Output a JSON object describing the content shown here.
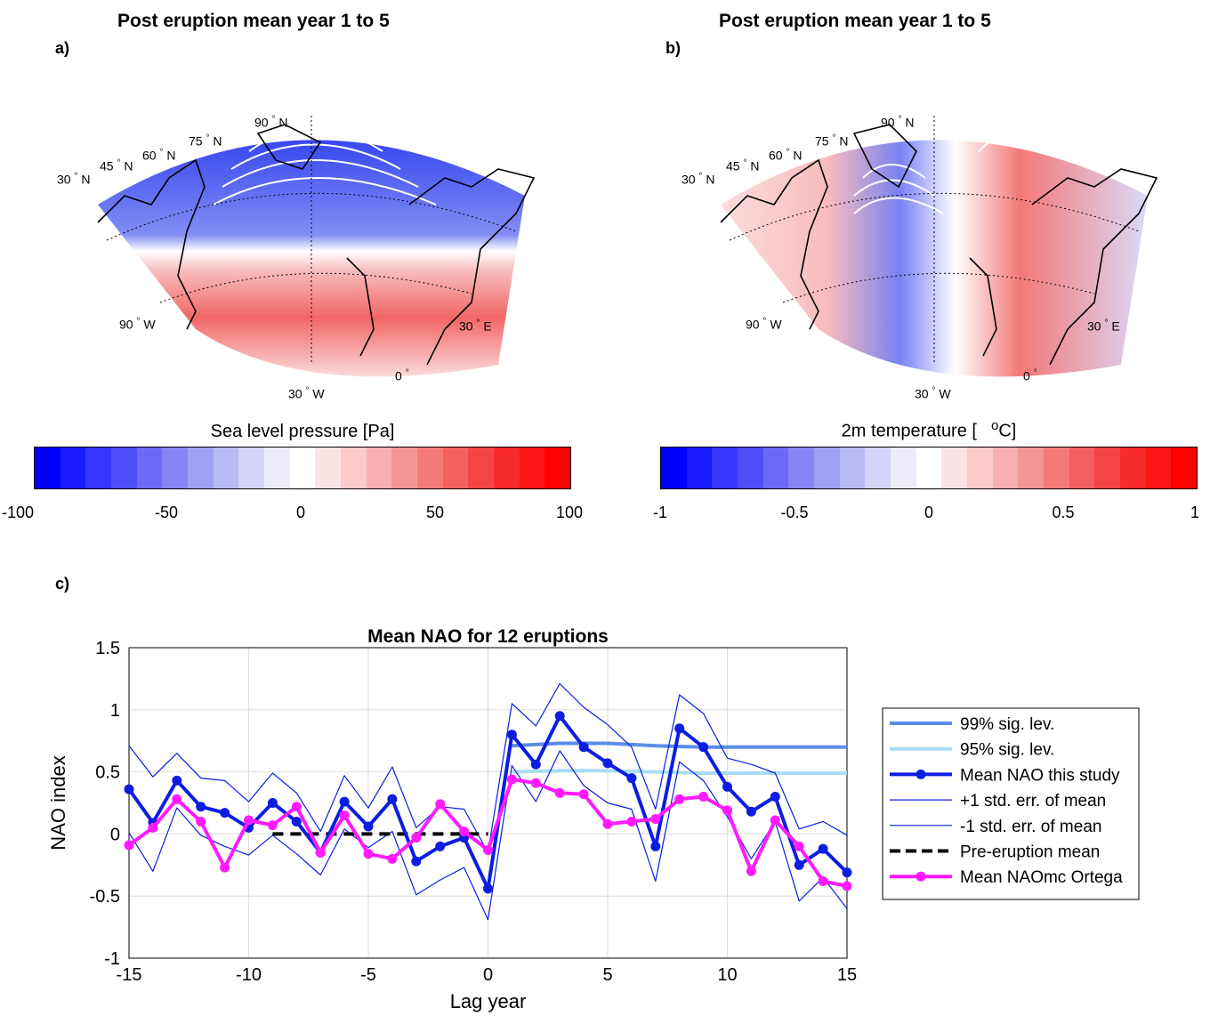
{
  "panel_a": {
    "label": "a)",
    "title": "Post eruption mean year 1 to 5",
    "colorbar_title": "Sea level pressure [Pa]",
    "colorbar_ticks": [
      "-100",
      "-50",
      "0",
      "50",
      "100"
    ],
    "geo_labels": {
      "n90": "90",
      "n75": "75",
      "n60": "60",
      "n45": "45",
      "n30": "30",
      "w90": "90",
      "w30": "30",
      "e0": "0",
      "e30": "30",
      "N": "N",
      "W": "W",
      "E": "E"
    }
  },
  "panel_b": {
    "label": "b)",
    "title": "Post eruption mean year 1 to 5",
    "colorbar_title_main": "2m temperature [",
    "colorbar_title_sup": "o",
    "colorbar_title_end": "C]",
    "colorbar_ticks": [
      "-1",
      "-0.5",
      "0",
      "0.5",
      "1"
    ],
    "geo_labels": {
      "n90": "90",
      "n75": "75",
      "n60": "60",
      "n45": "45",
      "n30": "30",
      "w90": "90",
      "w30": "30",
      "e0": "0",
      "e30": "30",
      "N": "N",
      "W": "W",
      "E": "E"
    }
  },
  "panel_c": {
    "label": "c)"
  },
  "colors": {
    "mean_nao": "#0b1ee0",
    "stderr": "#0b1ee0",
    "sig99": "#5b8ee8",
    "sig95": "#a9dcf2",
    "ortega": "#ff1aff",
    "pre_mean": "#000000",
    "grid": "#dddddd"
  },
  "chart_data": {
    "type": "line",
    "title": "Mean NAO for 12 eruptions",
    "xlabel": "Lag year",
    "ylabel": "NAO index",
    "xlim": [
      -15,
      15
    ],
    "ylim": [
      -1,
      1.5
    ],
    "xticks": [
      "-15",
      "-10",
      "-5",
      "0",
      "5",
      "10",
      "15"
    ],
    "yticks": [
      "-1",
      "-0.5",
      "0",
      "0.5",
      "1",
      "1.5"
    ],
    "grid": true,
    "legend_position": "right",
    "x": [
      -15,
      -14,
      -13,
      -12,
      -11,
      -10,
      -9,
      -8,
      -7,
      -6,
      -5,
      -4,
      -3,
      -2,
      -1,
      0,
      1,
      2,
      3,
      4,
      5,
      6,
      7,
      8,
      9,
      10,
      11,
      12,
      13,
      14,
      15
    ],
    "series": [
      {
        "name": "99% sig. lev.",
        "x": [
          1,
          3,
          5,
          7,
          9,
          11,
          13,
          15
        ],
        "values": [
          0.71,
          0.73,
          0.73,
          0.71,
          0.7,
          0.7,
          0.7,
          0.7
        ]
      },
      {
        "name": "95% sig. lev.",
        "x": [
          1,
          3,
          5,
          7,
          9,
          11,
          13,
          15
        ],
        "values": [
          0.5,
          0.51,
          0.51,
          0.5,
          0.49,
          0.49,
          0.49,
          0.49
        ]
      },
      {
        "name": "Mean NAO this study",
        "values": [
          0.36,
          0.09,
          0.43,
          0.22,
          0.17,
          0.05,
          0.25,
          0.1,
          -0.15,
          0.26,
          0.06,
          0.28,
          -0.22,
          -0.1,
          -0.03,
          -0.44,
          0.8,
          0.56,
          0.95,
          0.7,
          0.57,
          0.45,
          -0.1,
          0.85,
          0.7,
          0.38,
          0.18,
          0.3,
          -0.25,
          -0.12,
          -0.31
        ]
      },
      {
        "name": "+1 std. err. of mean",
        "values": [
          0.71,
          0.46,
          0.65,
          0.45,
          0.43,
          0.26,
          0.49,
          0.33,
          0.02,
          0.47,
          0.21,
          0.54,
          0.05,
          0.22,
          0.2,
          -0.15,
          1.05,
          0.87,
          1.21,
          1.02,
          0.88,
          0.7,
          0.2,
          1.12,
          0.97,
          0.61,
          0.56,
          0.49,
          0.04,
          0.1,
          -0.01
        ]
      },
      {
        "name": "-1 std. err. of mean",
        "values": [
          0.01,
          -0.3,
          0.21,
          -0.01,
          -0.1,
          -0.17,
          -0.01,
          -0.16,
          -0.33,
          0.04,
          -0.11,
          0.02,
          -0.49,
          -0.37,
          -0.27,
          -0.69,
          0.55,
          0.26,
          0.67,
          0.39,
          0.25,
          0.2,
          -0.38,
          0.58,
          0.43,
          0.14,
          -0.2,
          0.1,
          -0.54,
          -0.35,
          -0.6
        ]
      },
      {
        "name": "Pre-eruption mean",
        "x": [
          -9,
          0
        ],
        "values": [
          0,
          0
        ]
      },
      {
        "name": "Mean NAOmc Ortega",
        "values": [
          -0.09,
          0.05,
          0.28,
          0.1,
          -0.27,
          0.11,
          0.07,
          0.22,
          -0.15,
          0.15,
          -0.16,
          -0.2,
          -0.03,
          0.24,
          0.02,
          -0.13,
          0.44,
          0.41,
          0.33,
          0.32,
          0.08,
          0.1,
          0.12,
          0.28,
          0.3,
          0.19,
          -0.3,
          0.11,
          -0.1,
          -0.38,
          -0.42
        ]
      }
    ]
  }
}
